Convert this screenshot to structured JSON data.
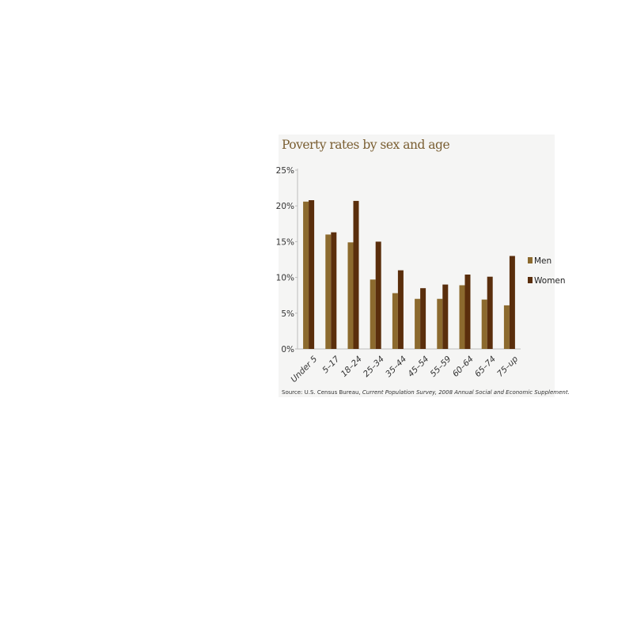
{
  "chart_data": {
    "type": "bar",
    "title": "Poverty rates by sex and age",
    "categories": [
      "Under 5",
      "5–17",
      "18–24",
      "25–34",
      "35–44",
      "45–54",
      "55–59",
      "60–64",
      "65–74",
      "75–up"
    ],
    "series": [
      {
        "name": "Men",
        "color": "#8c6a2e",
        "values": [
          20.6,
          16.0,
          14.9,
          9.7,
          7.8,
          7.0,
          7.0,
          8.9,
          6.9,
          6.1
        ]
      },
      {
        "name": "Women",
        "color": "#5a2e0c",
        "values": [
          20.8,
          16.3,
          20.7,
          15.0,
          11.0,
          8.5,
          9.0,
          10.4,
          10.1,
          13.0
        ]
      }
    ],
    "ylim": [
      0,
      25
    ],
    "y_ticks": [
      0,
      5,
      10,
      15,
      20,
      25
    ],
    "y_tick_suffix": "%",
    "legend_position": "right",
    "grid": false,
    "source": {
      "prefix": "Source: U.S. Census Bureau, ",
      "italic": "Current Population Survey, 2008 Annual Social and Economic Supplement."
    }
  }
}
